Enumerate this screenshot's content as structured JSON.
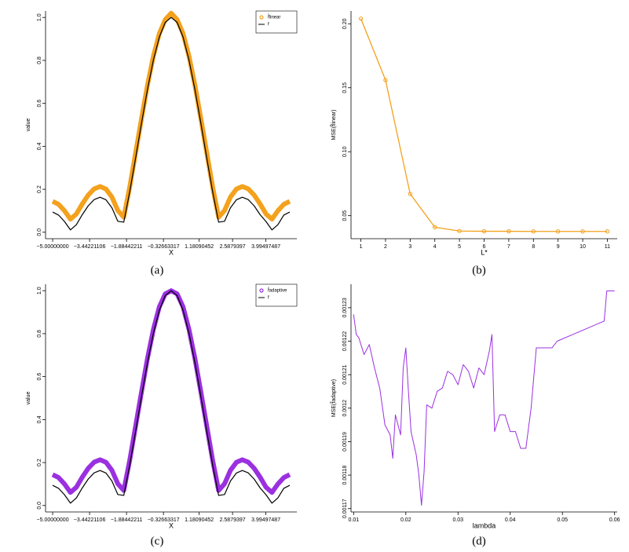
{
  "chart_data": [
    {
      "type": "line",
      "caption": "(a)",
      "xlabel": "X",
      "ylabel": "value",
      "x": [
        -5,
        -4.75,
        -4.5,
        -4.25,
        -4,
        -3.75,
        -3.5,
        -3.25,
        -3,
        -2.75,
        -2.5,
        -2.25,
        -2,
        -1.75,
        -1.5,
        -1.25,
        -1,
        -0.75,
        -0.5,
        -0.25,
        0,
        0.25,
        0.5,
        0.75,
        1,
        1.25,
        1.5,
        1.75,
        2,
        2.25,
        2.5,
        2.75,
        3,
        3.25,
        3.5,
        3.75,
        4,
        4.25,
        4.5,
        4.75,
        5
      ],
      "series": [
        {
          "name": "f̂linear",
          "color": "#f4a11d",
          "width": 6,
          "values": [
            0.144,
            0.13,
            0.1,
            0.061,
            0.085,
            0.132,
            0.173,
            0.202,
            0.213,
            0.201,
            0.164,
            0.101,
            0.07,
            0.21,
            0.37,
            0.53,
            0.685,
            0.82,
            0.925,
            0.99,
            1.02,
            0.99,
            0.925,
            0.82,
            0.685,
            0.53,
            0.37,
            0.21,
            0.07,
            0.101,
            0.164,
            0.201,
            0.213,
            0.202,
            0.173,
            0.132,
            0.085,
            0.061,
            0.1,
            0.13,
            0.144
          ]
        },
        {
          "name": "f",
          "color": "#000000",
          "width": 1.2,
          "values": [
            0.094,
            0.08,
            0.05,
            0.011,
            0.035,
            0.082,
            0.123,
            0.152,
            0.163,
            0.151,
            0.114,
            0.051,
            0.047,
            0.188,
            0.346,
            0.509,
            0.665,
            0.802,
            0.909,
            0.977,
            1,
            0.977,
            0.909,
            0.802,
            0.665,
            0.509,
            0.346,
            0.188,
            0.047,
            0.051,
            0.114,
            0.151,
            0.163,
            0.152,
            0.123,
            0.082,
            0.05,
            0.011,
            0.035,
            0.08,
            0.094
          ]
        }
      ],
      "xlim": [
        -5.3,
        5.3
      ],
      "ylim": [
        -0.03,
        1.03
      ],
      "xticks": [
        {
          "value": -5,
          "label": "−5.00000000"
        },
        {
          "value": -3.44221106,
          "label": "−3.44221106"
        },
        {
          "value": -1.88442211,
          "label": "−1.88442211"
        },
        {
          "value": -0.32663317,
          "label": "−0.32663317"
        },
        1.18090452,
        2.5879397,
        3.99497487
      ],
      "yticks": [
        {
          "value": 0,
          "label": "0.0"
        },
        0.2,
        0.4,
        0.6,
        0.8,
        {
          "value": 1,
          "label": "1.0"
        }
      ],
      "legend": "top-right"
    },
    {
      "type": "line",
      "caption": "(b)",
      "xlabel": "L*",
      "ylabel": "MSE(f̂linear)",
      "x": [
        1,
        2,
        3,
        4,
        5,
        6,
        7,
        8,
        9,
        10,
        11
      ],
      "series": [
        {
          "name": "MSE",
          "color": "#f4a11d",
          "width": 1.3,
          "marker": true,
          "values": [
            0.204,
            0.156,
            0.067,
            0.041,
            0.038,
            0.0378,
            0.0378,
            0.0377,
            0.0377,
            0.0377,
            0.0377
          ]
        }
      ],
      "xlim": [
        0.6,
        11.4
      ],
      "ylim": [
        0.032,
        0.21
      ],
      "xticks": [
        1,
        2,
        3,
        4,
        5,
        6,
        7,
        8,
        9,
        10,
        11
      ],
      "yticks": [
        0.05,
        {
          "value": 0.1,
          "label": "0.10"
        },
        0.15,
        {
          "value": 0.2,
          "label": "0.20"
        }
      ]
    },
    {
      "type": "line",
      "caption": "(c)",
      "xlabel": "X",
      "ylabel": "value",
      "x": [
        -5,
        -4.75,
        -4.5,
        -4.25,
        -4,
        -3.75,
        -3.5,
        -3.25,
        -3,
        -2.75,
        -2.5,
        -2.25,
        -2,
        -1.75,
        -1.5,
        -1.25,
        -1,
        -0.75,
        -0.5,
        -0.25,
        0,
        0.25,
        0.5,
        0.75,
        1,
        1.25,
        1.5,
        1.75,
        2,
        2.25,
        2.5,
        2.75,
        3,
        3.25,
        3.5,
        3.75,
        4,
        4.25,
        4.5,
        4.75,
        5
      ],
      "series": [
        {
          "name": "f̂adaptive",
          "color": "#9b30e0",
          "width": 6,
          "values": [
            0.144,
            0.13,
            0.1,
            0.061,
            0.085,
            0.132,
            0.173,
            0.202,
            0.213,
            0.201,
            0.164,
            0.101,
            0.07,
            0.21,
            0.37,
            0.53,
            0.685,
            0.82,
            0.925,
            0.985,
            1,
            0.985,
            0.925,
            0.82,
            0.685,
            0.53,
            0.37,
            0.21,
            0.07,
            0.101,
            0.164,
            0.201,
            0.213,
            0.202,
            0.173,
            0.132,
            0.085,
            0.061,
            0.1,
            0.13,
            0.144
          ]
        },
        {
          "name": "f",
          "color": "#000000",
          "width": 1.2,
          "values": [
            0.094,
            0.08,
            0.05,
            0.011,
            0.035,
            0.082,
            0.123,
            0.152,
            0.163,
            0.151,
            0.114,
            0.051,
            0.047,
            0.188,
            0.346,
            0.509,
            0.665,
            0.802,
            0.909,
            0.977,
            1,
            0.977,
            0.909,
            0.802,
            0.665,
            0.509,
            0.346,
            0.188,
            0.047,
            0.051,
            0.114,
            0.151,
            0.163,
            0.152,
            0.123,
            0.082,
            0.05,
            0.011,
            0.035,
            0.08,
            0.094
          ]
        }
      ],
      "xlim": [
        -5.3,
        5.3
      ],
      "ylim": [
        -0.03,
        1.03
      ],
      "xticks": [
        {
          "value": -5,
          "label": "−5.00000000"
        },
        {
          "value": -3.44221106,
          "label": "−3.44221106"
        },
        {
          "value": -1.88442211,
          "label": "−1.88442211"
        },
        {
          "value": -0.32663317,
          "label": "−0.32663317"
        },
        1.18090452,
        2.5879397,
        3.99497487
      ],
      "yticks": [
        {
          "value": 0,
          "label": "0.0"
        },
        0.2,
        0.4,
        0.6,
        0.8,
        {
          "value": 1,
          "label": "1.0"
        }
      ],
      "legend": "top-right"
    },
    {
      "type": "line",
      "caption": "(d)",
      "xlabel": "lambda",
      "ylabel": "MSE(f̂adaptive)",
      "x": [
        0.01,
        0.0105,
        0.011,
        0.012,
        0.013,
        0.014,
        0.015,
        0.016,
        0.017,
        0.0175,
        0.018,
        0.019,
        0.0195,
        0.02,
        0.0205,
        0.021,
        0.022,
        0.0225,
        0.023,
        0.0235,
        0.024,
        0.025,
        0.026,
        0.027,
        0.028,
        0.029,
        0.03,
        0.031,
        0.032,
        0.033,
        0.034,
        0.035,
        0.036,
        0.0365,
        0.037,
        0.038,
        0.039,
        0.04,
        0.041,
        0.042,
        0.043,
        0.044,
        0.045,
        0.046,
        0.048,
        0.049,
        0.052,
        0.055,
        0.058,
        0.0585,
        0.06
      ],
      "series": [
        {
          "name": "MSE",
          "color": "#9b30e0",
          "width": 1,
          "values": [
            0.001228,
            0.001222,
            0.001221,
            0.001216,
            0.001219,
            0.001212,
            0.001206,
            0.001195,
            0.001192,
            0.001185,
            0.001198,
            0.001192,
            0.001212,
            0.001218,
            0.001205,
            0.001193,
            0.001186,
            0.00118,
            0.001171,
            0.001181,
            0.001201,
            0.0012,
            0.001205,
            0.001206,
            0.001211,
            0.00121,
            0.001207,
            0.001213,
            0.001211,
            0.001206,
            0.001212,
            0.00121,
            0.001217,
            0.001222,
            0.001193,
            0.001198,
            0.001198,
            0.001193,
            0.001193,
            0.001188,
            0.001188,
            0.0012,
            0.001218,
            0.001218,
            0.001218,
            0.00122,
            0.001222,
            0.001224,
            0.001226,
            0.001235,
            0.001235
          ]
        }
      ],
      "xlim": [
        0.0095,
        0.0605
      ],
      "ylim": [
        0.001169,
        0.001237
      ],
      "xticks": [
        0.01,
        0.02,
        0.03,
        0.04,
        0.05,
        0.06
      ],
      "yticks": [
        0.00117,
        0.00118,
        0.00119,
        0.0012,
        0.00121,
        0.00122,
        0.00123
      ]
    }
  ]
}
